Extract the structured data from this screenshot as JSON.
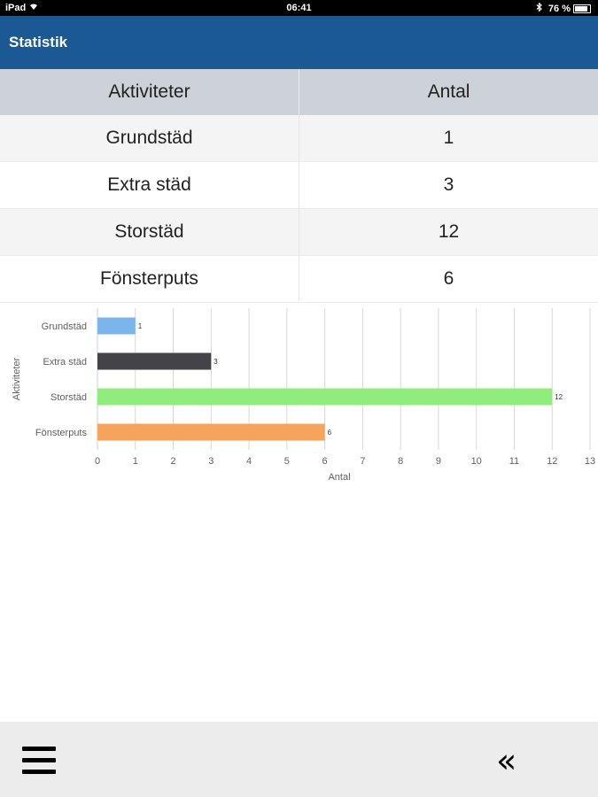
{
  "status_bar": {
    "device": "iPad",
    "time": "06:41",
    "battery": "76 %"
  },
  "header": {
    "title": "Statistik"
  },
  "table": {
    "columns": [
      "Aktiviteter",
      "Antal"
    ],
    "rows": [
      [
        "Grundstäd",
        "1"
      ],
      [
        "Extra städ",
        "3"
      ],
      [
        "Storstäd",
        "12"
      ],
      [
        "Fönsterputs",
        "6"
      ]
    ]
  },
  "chart_data": {
    "type": "bar",
    "orientation": "horizontal",
    "categories": [
      "Grundstäd",
      "Extra städ",
      "Storstäd",
      "Fönsterputs"
    ],
    "values": [
      1,
      3,
      12,
      6
    ],
    "colors": [
      "#7cb5ec",
      "#434348",
      "#90ed7d",
      "#f7a35c"
    ],
    "xlabel": "Antal",
    "ylabel": "Aktiviteter",
    "xlim": [
      0,
      13
    ],
    "xticks": [
      "0",
      "1",
      "2",
      "3",
      "4",
      "5",
      "6",
      "7",
      "8",
      "9",
      "10",
      "11",
      "12",
      "13"
    ],
    "grid": true,
    "data_labels": [
      "1",
      "3",
      "12",
      "6"
    ]
  },
  "bottom_bar": {
    "menu_icon": "hamburger-menu-icon",
    "back_icon": "double-chevron-left-icon",
    "back_glyph": "«"
  }
}
